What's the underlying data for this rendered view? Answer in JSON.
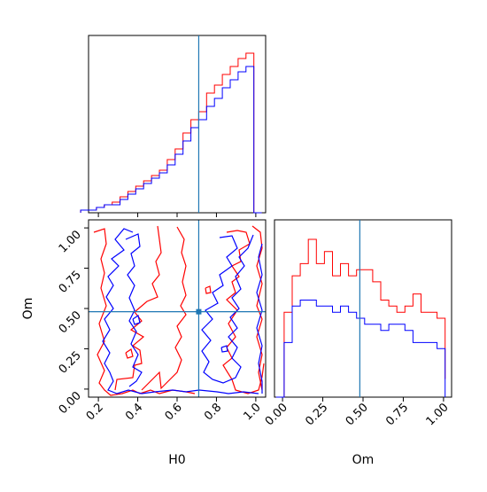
{
  "colors": {
    "series_red": "#ff0000",
    "series_blue": "#0000ff",
    "truth": "#1f77b4"
  },
  "truth": {
    "H0": 0.71,
    "Om": 0.48
  },
  "chart_data": [
    {
      "type": "histogram",
      "panel": "top-left",
      "title": "",
      "xlabel": "",
      "ylabel": "",
      "xlim": [
        0.15,
        1.05
      ],
      "bin_edges": [
        0.11,
        0.15,
        0.19,
        0.23,
        0.27,
        0.31,
        0.35,
        0.39,
        0.43,
        0.47,
        0.51,
        0.55,
        0.59,
        0.63,
        0.67,
        0.71,
        0.75,
        0.79,
        0.83,
        0.87,
        0.91,
        0.95,
        0.99,
        1.03
      ],
      "series": [
        {
          "color": "red",
          "values": [
            1,
            1,
            2,
            3,
            4,
            6,
            8,
            10,
            12,
            14,
            16,
            20,
            24,
            30,
            35,
            38,
            45,
            48,
            52,
            55,
            58,
            60,
            0
          ]
        },
        {
          "color": "blue",
          "values": [
            1,
            1,
            2,
            3,
            3,
            5,
            7,
            9,
            11,
            13,
            15,
            18,
            22,
            27,
            32,
            35,
            40,
            43,
            47,
            50,
            53,
            55,
            0
          ]
        }
      ],
      "vline": 0.71
    },
    {
      "type": "contour",
      "panel": "bottom-left",
      "title": "",
      "xlabel": "H0",
      "ylabel": "Om",
      "xlim": [
        0.15,
        1.05
      ],
      "ylim": [
        -0.05,
        1.05
      ],
      "xticks": [
        "0.2",
        "0.4",
        "0.6",
        "0.8",
        "1.0"
      ],
      "yticks": [
        "0.00",
        "0.25",
        "0.50",
        "0.75",
        "1.00"
      ],
      "vline": 0.71,
      "hline": 0.48,
      "marker": [
        0.71,
        0.48
      ]
    },
    {
      "type": "histogram",
      "panel": "bottom-right",
      "title": "",
      "xlabel": "Om",
      "ylabel": "",
      "xlim": [
        -0.05,
        1.05
      ],
      "xticks": [
        "0.00",
        "0.25",
        "0.50",
        "0.75",
        "1.00"
      ],
      "bin_edges": [
        -0.04,
        0.01,
        0.06,
        0.11,
        0.16,
        0.21,
        0.26,
        0.31,
        0.36,
        0.41,
        0.46,
        0.51,
        0.56,
        0.61,
        0.66,
        0.71,
        0.76,
        0.81,
        0.86,
        0.91,
        0.96,
        1.01
      ],
      "series": [
        {
          "color": "red",
          "values": [
            0,
            14,
            20,
            22,
            26,
            22,
            24,
            20,
            22,
            20,
            21,
            21,
            19,
            16,
            15,
            14,
            15,
            17,
            14,
            14,
            13,
            3
          ]
        },
        {
          "color": "blue",
          "values": [
            0,
            9,
            15,
            16,
            16,
            15,
            15,
            14,
            15,
            14,
            13,
            12,
            12,
            11,
            12,
            12,
            11,
            9,
            9,
            9,
            8,
            0
          ]
        }
      ],
      "vline": 0.48
    }
  ]
}
